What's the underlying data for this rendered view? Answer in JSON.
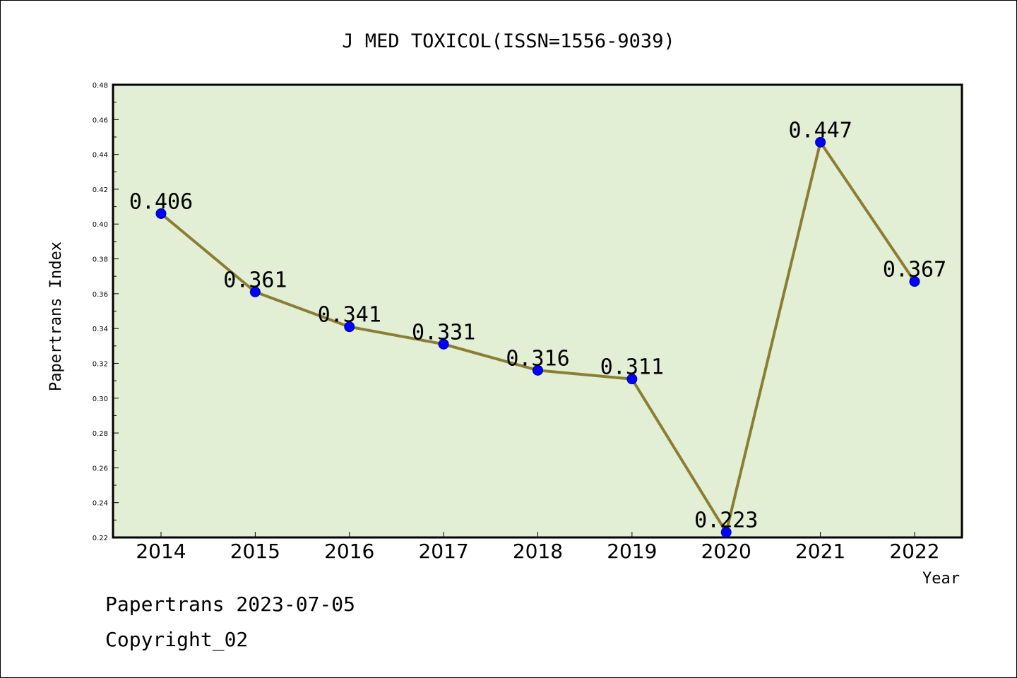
{
  "chart_data": {
    "type": "line",
    "title": "J MED TOXICOL(ISSN=1556-9039)",
    "xlabel": "Year",
    "ylabel": "Papertrans Index",
    "categories": [
      "2014",
      "2015",
      "2016",
      "2017",
      "2018",
      "2019",
      "2020",
      "2021",
      "2022"
    ],
    "series": [
      {
        "values": [
          0.406,
          0.361,
          0.341,
          0.331,
          0.316,
          0.311,
          0.223,
          0.447,
          0.367
        ],
        "labels": [
          "0.406",
          "0.361",
          "0.341",
          "0.331",
          "0.316",
          "0.311",
          "0.223",
          "0.447",
          "0.367"
        ]
      }
    ],
    "ylim": [
      0.22,
      0.48
    ],
    "yticks": [
      "0.22",
      "0.24",
      "0.26",
      "0.28",
      "0.30",
      "0.32",
      "0.34",
      "0.36",
      "0.38",
      "0.40",
      "0.42",
      "0.44",
      "0.46",
      "0.48"
    ],
    "grid": false,
    "colors": {
      "plot_background": "#e2efd5",
      "line": "#8b7e33",
      "marker": "#0000ff",
      "marker_edge": "#00008b"
    }
  },
  "footer": {
    "line1": "Papertrans 2023-07-05",
    "line2": "Copyright_02"
  }
}
